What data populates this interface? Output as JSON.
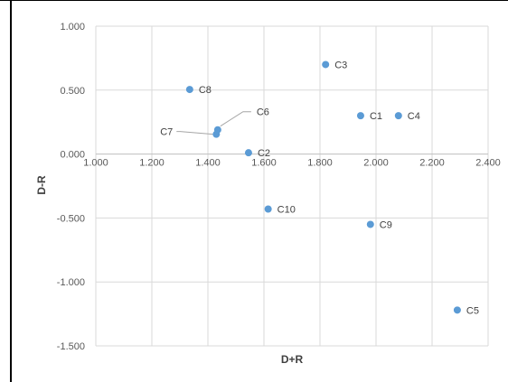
{
  "chart_data": {
    "type": "scatter",
    "xlabel": "D+R",
    "ylabel": "D-R",
    "xlim": [
      1.0,
      2.4
    ],
    "ylim": [
      -1.5,
      1.0
    ],
    "x_ticks": [
      "1.000",
      "1.200",
      "1.400",
      "1.600",
      "1.800",
      "2.000",
      "2.200",
      "2.400"
    ],
    "y_ticks": [
      "1.000",
      "0.500",
      "0.000",
      "-0.500",
      "-1.000",
      "-1.500"
    ],
    "grid": true,
    "legend": "none",
    "marker_color": "#5B9BD5",
    "points": [
      {
        "label": "C1",
        "x": 1.945,
        "y": 0.3
      },
      {
        "label": "C2",
        "x": 1.545,
        "y": 0.01
      },
      {
        "label": "C3",
        "x": 1.82,
        "y": 0.7
      },
      {
        "label": "C4",
        "x": 2.08,
        "y": 0.3
      },
      {
        "label": "C5",
        "x": 2.29,
        "y": -1.22
      },
      {
        "label": "C6",
        "x": 1.435,
        "y": 0.19
      },
      {
        "label": "C7",
        "x": 1.43,
        "y": 0.155
      },
      {
        "label": "C8",
        "x": 1.335,
        "y": 0.505
      },
      {
        "label": "C9",
        "x": 1.98,
        "y": -0.55
      },
      {
        "label": "C10",
        "x": 1.615,
        "y": -0.43
      }
    ]
  }
}
